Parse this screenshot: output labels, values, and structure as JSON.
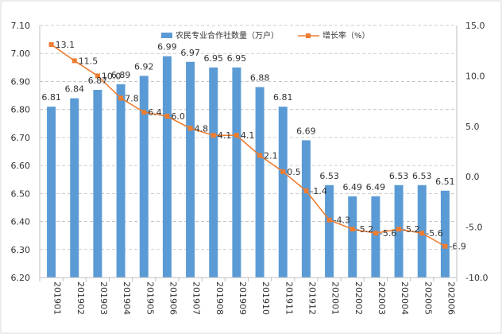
{
  "chart_data": {
    "type": "bar+line",
    "categories": [
      "201901",
      "201902",
      "201903",
      "201904",
      "201905",
      "201906",
      "201907",
      "201908",
      "201909",
      "201910",
      "201911",
      "201912",
      "202001",
      "202002",
      "202003",
      "202004",
      "202005",
      "202006"
    ],
    "series": [
      {
        "name": "农民专业合作社数量（万户）",
        "kind": "bar",
        "axis": "left",
        "color": "#5b9bd5",
        "values": [
          6.81,
          6.84,
          6.87,
          6.89,
          6.92,
          6.99,
          6.97,
          6.95,
          6.95,
          6.88,
          6.81,
          6.69,
          6.53,
          6.49,
          6.49,
          6.53,
          6.53,
          6.51
        ],
        "labels": [
          "6.81",
          "6.84",
          "6.87",
          "6.89",
          "6.92",
          "6.99",
          "6.97",
          "6.95",
          "6.95",
          "6.88",
          "6.81",
          "6.69",
          "6.53",
          "6.49",
          "6.49",
          "6.53",
          "6.53",
          "6.51"
        ]
      },
      {
        "name": "增长率（%）",
        "kind": "line",
        "axis": "right",
        "color": "#ed7d31",
        "values": [
          13.1,
          11.5,
          10.0,
          7.8,
          6.4,
          6.0,
          4.8,
          4.1,
          4.1,
          2.1,
          0.5,
          -1.4,
          -4.3,
          -5.2,
          -5.6,
          -5.2,
          -5.6,
          -6.9
        ],
        "labels": [
          "13.1",
          "11.5",
          "10.0",
          "7.8",
          "6.4",
          "6.0",
          "4.8",
          "4.1",
          "4.1",
          "2.1",
          "0.5",
          "-1.4",
          "-4.3",
          "-5.2",
          "-5.6",
          "-5.2",
          "-5.6",
          "-6.9"
        ]
      }
    ],
    "y_left": {
      "min": 6.2,
      "max": 7.1,
      "ticks": [
        "6.20",
        "6.30",
        "6.40",
        "6.50",
        "6.60",
        "6.70",
        "6.80",
        "6.90",
        "7.00",
        "7.10"
      ]
    },
    "y_right": {
      "min": -10,
      "max": 15,
      "ticks": [
        "-10.0",
        "-5.0",
        "0.0",
        "5.0",
        "10.0",
        "15.0"
      ]
    },
    "grid": "horizontal-dashed",
    "legend_position": "top-center"
  }
}
